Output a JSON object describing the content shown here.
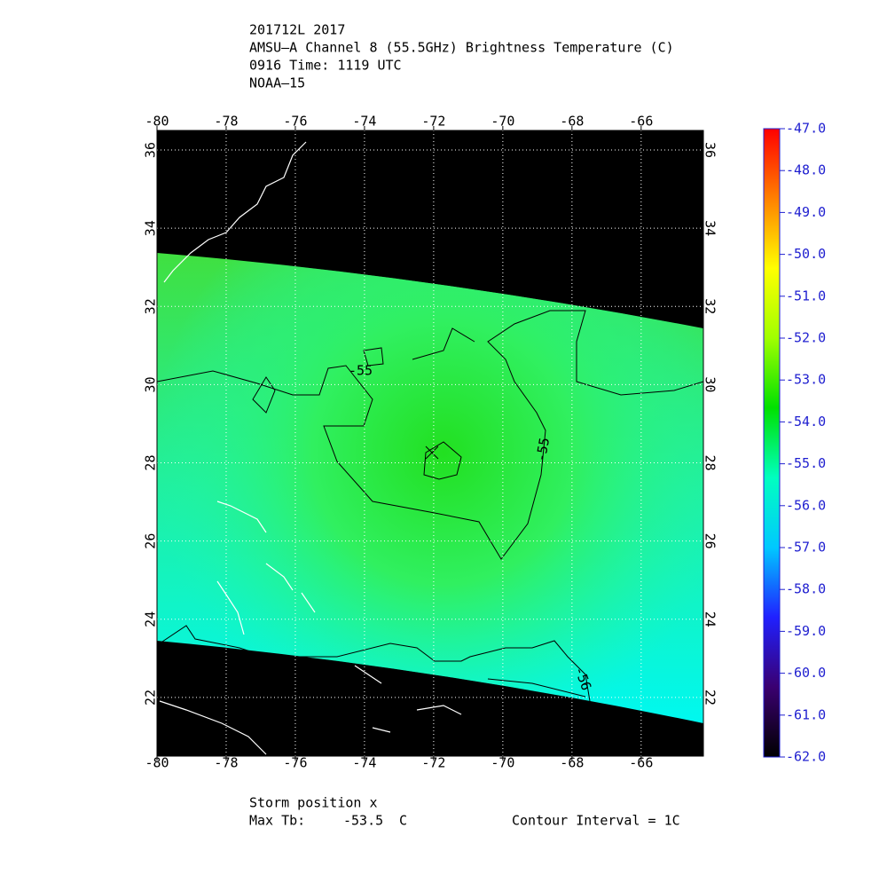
{
  "header": {
    "lines": [
      "201712L 2017",
      "AMSU–A Channel 8 (55.5GHz) Brightness Temperature (C)",
      "0916 Time: 1119 UTC",
      "NOAA–15"
    ]
  },
  "map": {
    "xlim": [
      -80,
      -64.2
    ],
    "ylim": [
      20.5,
      36.5
    ],
    "xticks": [
      -80,
      -78,
      -76,
      -74,
      -72,
      -70,
      -68,
      -66
    ],
    "yticks": [
      22,
      24,
      26,
      28,
      30,
      32,
      34,
      36
    ],
    "grid": true,
    "contour_labels": [
      -55,
      -55,
      -56
    ]
  },
  "colorbar": {
    "range": [
      -62,
      -47
    ],
    "colors": [
      "#000000",
      "#3a0070",
      "#2020ff",
      "#00c8ff",
      "#00ffc0",
      "#00e000",
      "#a0ff00",
      "#ffff00",
      "#ff8000",
      "#ff0000"
    ],
    "ticks": [
      {
        "value": -47,
        "label": "-47.0"
      },
      {
        "value": -48,
        "label": "-48.0"
      },
      {
        "value": -49,
        "label": "-49.0"
      },
      {
        "value": -50,
        "label": "-50.0"
      },
      {
        "value": -51,
        "label": "-51.0"
      },
      {
        "value": -52,
        "label": "-52.0"
      },
      {
        "value": -53,
        "label": "-53.0"
      },
      {
        "value": -54,
        "label": "-54.0"
      },
      {
        "value": -55,
        "label": "-55.0"
      },
      {
        "value": -56,
        "label": "-56.0"
      },
      {
        "value": -57,
        "label": "-57.0"
      },
      {
        "value": -58,
        "label": "-58.0"
      },
      {
        "value": -59,
        "label": "-59.0"
      },
      {
        "value": -60,
        "label": "-60.0"
      },
      {
        "value": -61,
        "label": "-61.0"
      },
      {
        "value": -62,
        "label": "-62.0"
      }
    ]
  },
  "footer": {
    "storm_position": "Storm position x",
    "max_tb_label": "Max Tb:",
    "max_tb": -53.5,
    "max_tb_unit": "C",
    "contour_interval": "Contour Interval = 1C"
  }
}
